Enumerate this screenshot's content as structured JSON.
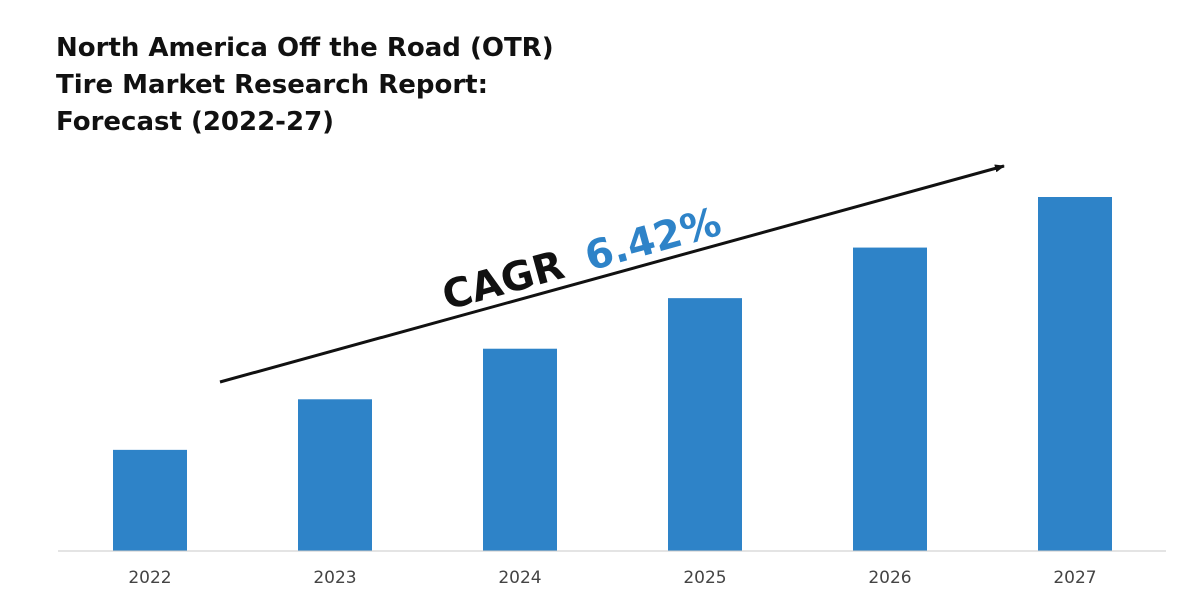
{
  "chart_data": {
    "type": "bar",
    "title_lines": [
      "North America Off the Road (OTR)",
      "Tire Market Research Report:",
      "Forecast (2022-27)"
    ],
    "categories": [
      "2022",
      "2023",
      "2024",
      "2025",
      "2026",
      "2027"
    ],
    "values": [
      1.0,
      1.5,
      2.0,
      2.5,
      3.0,
      3.5
    ],
    "ylim": [
      0,
      3.5
    ],
    "xlabel": "",
    "ylabel": "",
    "grid": false,
    "legend": "none",
    "bar_color": "#2e83c8",
    "annotation": {
      "prefix": "CAGR",
      "value": "6.42%",
      "value_color": "#2e83c8"
    }
  }
}
